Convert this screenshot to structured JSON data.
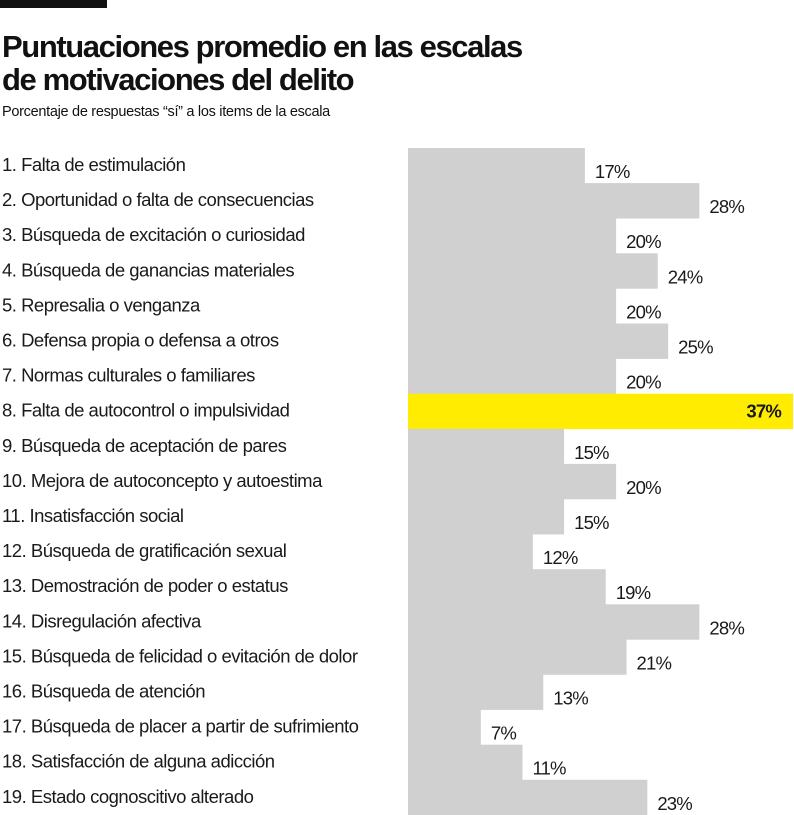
{
  "chart_data": {
    "type": "bar",
    "orientation": "horizontal",
    "title": "Puntuaciones promedio en las escalas de motivaciones del delito",
    "title_lines": [
      "Puntuaciones promedio en las escalas",
      "de motivaciones del delito"
    ],
    "subtitle": "Porcentaje de respuestas “sí” a los items de la escala",
    "categories": [
      "1. Falta de estimulación",
      "2. Oportunidad o falta de consecuencias",
      "3. Búsqueda de excitación o curiosidad",
      "4. Búsqueda de ganancias materiales",
      "5. Represalia o venganza",
      "6. Defensa propia o defensa a otros",
      "7. Normas culturales o familiares",
      "8. Falta de autocontrol o impulsividad",
      "9. Búsqueda de aceptación de pares",
      "10. Mejora de autoconcepto y autoestima",
      "11. Insatisfacción social",
      "12. Búsqueda de gratificación sexual",
      "13. Demostración de poder o estatus",
      "14. Disregulación afectiva",
      "15. Búsqueda de felicidad o evitación de dolor",
      "16. Búsqueda de atención",
      "17. Búsqueda de placer a partir de sufrimiento",
      "18. Satisfacción de alguna adicción",
      "19. Estado cognoscitivo alterado"
    ],
    "values": [
      17,
      28,
      20,
      24,
      20,
      25,
      20,
      37,
      15,
      20,
      15,
      12,
      19,
      28,
      21,
      13,
      7,
      11,
      23
    ],
    "value_labels": [
      "17%",
      "28%",
      "20%",
      "24%",
      "20%",
      "25%",
      "20%",
      "37%",
      "15%",
      "20%",
      "15%",
      "12%",
      "19%",
      "28%",
      "21%",
      "13%",
      "7%",
      "11%",
      "23%"
    ],
    "highlight_index": 7,
    "xlim": [
      0,
      37
    ],
    "grid": false,
    "colors": {
      "bar": "#D0D0D0",
      "highlight": "#FFEC00",
      "text": "#1a1a1a"
    }
  }
}
